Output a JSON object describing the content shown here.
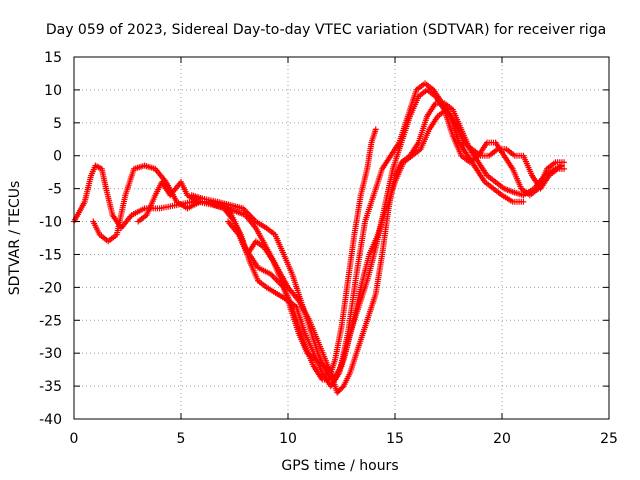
{
  "chart_data": {
    "type": "scatter",
    "title": "Day 059 of 2023, Sidereal Day-to-day VTEC variation (SDTVAR) for receiver riga",
    "xlabel": "GPS time / hours",
    "ylabel": "SDTVAR / TECUs",
    "xlim": [
      0,
      25
    ],
    "ylim": [
      -40,
      15
    ],
    "xticks": [
      "0",
      "5",
      "10",
      "15",
      "20",
      "25"
    ],
    "yticks": [
      "15",
      "10",
      "5",
      "0",
      "-5",
      "-10",
      "-15",
      "-20",
      "-25",
      "-30",
      "-35",
      "-40"
    ],
    "grid": true,
    "marker": "plus",
    "color": "#ff0000",
    "series": [
      {
        "values": [
          [
            0.0,
            -10
          ],
          [
            0.5,
            -7
          ],
          [
            0.8,
            -3
          ],
          [
            1.0,
            -1.5
          ],
          [
            1.3,
            -2
          ],
          [
            1.5,
            -5
          ],
          [
            1.8,
            -9
          ],
          [
            2.2,
            -11
          ],
          [
            2.7,
            -9
          ],
          [
            3.3,
            -8
          ],
          [
            4.0,
            -8
          ],
          [
            4.8,
            -7.5
          ],
          [
            5.5,
            -7
          ],
          [
            6.2,
            -7
          ],
          [
            7.0,
            -8
          ],
          [
            7.5,
            -10
          ],
          [
            8.0,
            -14
          ],
          [
            8.6,
            -17
          ],
          [
            9.2,
            -18
          ],
          [
            9.8,
            -20
          ],
          [
            10.2,
            -23
          ],
          [
            10.5,
            -26
          ],
          [
            10.8,
            -29
          ],
          [
            11.2,
            -32
          ],
          [
            11.6,
            -34
          ],
          [
            11.9,
            -34
          ],
          [
            12.2,
            -31
          ],
          [
            12.5,
            -26
          ],
          [
            12.8,
            -19
          ],
          [
            13.1,
            -12
          ],
          [
            13.4,
            -6
          ],
          [
            13.7,
            -2
          ],
          [
            13.9,
            2
          ],
          [
            14.1,
            4
          ]
        ]
      },
      {
        "values": [
          [
            0.9,
            -10
          ],
          [
            1.2,
            -12
          ],
          [
            1.6,
            -13
          ],
          [
            2.0,
            -12
          ],
          [
            2.4,
            -6
          ],
          [
            2.8,
            -2
          ],
          [
            3.3,
            -1.5
          ],
          [
            3.8,
            -2
          ],
          [
            4.3,
            -4
          ],
          [
            4.8,
            -7
          ],
          [
            5.3,
            -8
          ],
          [
            5.9,
            -7
          ],
          [
            6.5,
            -7
          ],
          [
            7.2,
            -8
          ],
          [
            7.8,
            -12
          ],
          [
            8.2,
            -16
          ],
          [
            8.6,
            -19
          ],
          [
            9.0,
            -20
          ],
          [
            9.5,
            -21
          ],
          [
            10.0,
            -22
          ],
          [
            10.4,
            -23
          ],
          [
            10.8,
            -27
          ],
          [
            11.2,
            -30
          ],
          [
            11.6,
            -33
          ],
          [
            12.0,
            -35
          ],
          [
            12.4,
            -33
          ],
          [
            12.8,
            -27
          ],
          [
            13.2,
            -18
          ],
          [
            13.6,
            -10
          ],
          [
            14.0,
            -6
          ],
          [
            14.4,
            -2
          ],
          [
            14.8,
            0
          ],
          [
            15.2,
            2
          ],
          [
            15.6,
            6
          ],
          [
            16.0,
            10
          ],
          [
            16.4,
            11
          ],
          [
            16.8,
            10
          ],
          [
            17.2,
            8
          ],
          [
            17.6,
            6
          ],
          [
            18.0,
            2
          ],
          [
            18.4,
            0
          ],
          [
            18.8,
            -2
          ],
          [
            19.2,
            -4
          ],
          [
            19.6,
            -5
          ],
          [
            20.0,
            -6
          ],
          [
            20.5,
            -7
          ],
          [
            21.0,
            -7
          ]
        ]
      },
      {
        "values": [
          [
            3.0,
            -10
          ],
          [
            3.4,
            -9
          ],
          [
            3.8,
            -6
          ],
          [
            4.1,
            -4
          ],
          [
            4.5,
            -6
          ],
          [
            5.0,
            -4
          ],
          [
            5.3,
            -6
          ],
          [
            5.8,
            -7
          ],
          [
            6.5,
            -7.5
          ],
          [
            7.1,
            -8
          ],
          [
            7.6,
            -8.5
          ],
          [
            8.0,
            -9
          ],
          [
            8.5,
            -11
          ],
          [
            9.0,
            -14
          ],
          [
            9.5,
            -17
          ],
          [
            10.0,
            -20
          ],
          [
            10.5,
            -22
          ],
          [
            11.0,
            -25
          ],
          [
            11.5,
            -29
          ],
          [
            12.0,
            -33
          ],
          [
            12.3,
            -36
          ],
          [
            12.6,
            -35
          ],
          [
            12.9,
            -33
          ],
          [
            13.2,
            -30
          ],
          [
            13.5,
            -27
          ],
          [
            13.8,
            -24
          ],
          [
            14.1,
            -21
          ],
          [
            14.4,
            -15
          ],
          [
            14.7,
            -8
          ],
          [
            15.0,
            -3
          ],
          [
            15.3,
            -1
          ],
          [
            15.7,
            0
          ],
          [
            16.1,
            2
          ],
          [
            16.5,
            6
          ],
          [
            16.9,
            8
          ],
          [
            17.3,
            8
          ],
          [
            17.7,
            7
          ],
          [
            18.1,
            4
          ],
          [
            18.5,
            1
          ],
          [
            18.9,
            -1
          ],
          [
            19.3,
            -3
          ],
          [
            19.7,
            -4
          ],
          [
            20.1,
            -5
          ],
          [
            20.5,
            -5.5
          ],
          [
            21.0,
            -6
          ],
          [
            21.5,
            -5
          ],
          [
            22.0,
            -3
          ],
          [
            22.5,
            -2
          ],
          [
            22.8,
            -1.5
          ]
        ]
      },
      {
        "values": [
          [
            5.5,
            -6
          ],
          [
            6.0,
            -6.5
          ],
          [
            6.7,
            -7
          ],
          [
            7.3,
            -7.5
          ],
          [
            7.9,
            -8
          ],
          [
            8.5,
            -10
          ],
          [
            9.0,
            -11
          ],
          [
            9.4,
            -12
          ],
          [
            9.8,
            -15
          ],
          [
            10.2,
            -18
          ],
          [
            10.6,
            -22
          ],
          [
            11.0,
            -26
          ],
          [
            11.4,
            -30
          ],
          [
            11.8,
            -33
          ],
          [
            12.2,
            -34
          ],
          [
            12.6,
            -31
          ],
          [
            13.0,
            -26
          ],
          [
            13.4,
            -20
          ],
          [
            13.8,
            -15
          ],
          [
            14.2,
            -12
          ],
          [
            14.6,
            -8
          ],
          [
            15.0,
            -4
          ],
          [
            15.4,
            -1
          ],
          [
            15.8,
            0
          ],
          [
            16.2,
            1
          ],
          [
            16.6,
            4
          ],
          [
            17.0,
            6
          ],
          [
            17.4,
            7
          ],
          [
            17.8,
            5
          ],
          [
            18.2,
            2
          ],
          [
            18.6,
            1
          ],
          [
            19.0,
            0
          ],
          [
            19.4,
            0
          ],
          [
            19.8,
            1
          ],
          [
            20.2,
            1
          ],
          [
            20.6,
            0
          ],
          [
            21.0,
            0
          ],
          [
            21.4,
            -3
          ],
          [
            21.8,
            -5
          ],
          [
            22.2,
            -3
          ],
          [
            22.6,
            -2
          ],
          [
            22.9,
            -2
          ]
        ]
      },
      {
        "values": [
          [
            7.2,
            -10
          ],
          [
            7.7,
            -12
          ],
          [
            8.1,
            -15
          ],
          [
            8.5,
            -13
          ],
          [
            8.9,
            -14
          ],
          [
            9.3,
            -16
          ],
          [
            9.7,
            -19
          ],
          [
            10.1,
            -23
          ],
          [
            10.5,
            -27
          ],
          [
            10.9,
            -30
          ],
          [
            11.3,
            -31
          ],
          [
            11.7,
            -32
          ],
          [
            12.1,
            -34
          ],
          [
            12.5,
            -32
          ],
          [
            12.9,
            -27
          ],
          [
            13.3,
            -23
          ],
          [
            13.7,
            -19
          ],
          [
            14.1,
            -14
          ],
          [
            14.5,
            -8
          ],
          [
            14.9,
            -2
          ],
          [
            15.3,
            2
          ],
          [
            15.7,
            6
          ],
          [
            16.1,
            9
          ],
          [
            16.5,
            10
          ],
          [
            16.9,
            9
          ],
          [
            17.3,
            7
          ],
          [
            17.7,
            3
          ],
          [
            18.1,
            0
          ],
          [
            18.5,
            -1
          ],
          [
            18.9,
            0
          ],
          [
            19.3,
            2
          ],
          [
            19.7,
            2
          ],
          [
            20.1,
            0
          ],
          [
            20.5,
            -2
          ],
          [
            20.9,
            -5
          ],
          [
            21.3,
            -6
          ],
          [
            21.7,
            -5
          ],
          [
            22.1,
            -2
          ],
          [
            22.5,
            -1
          ],
          [
            22.9,
            -1
          ]
        ]
      }
    ]
  }
}
